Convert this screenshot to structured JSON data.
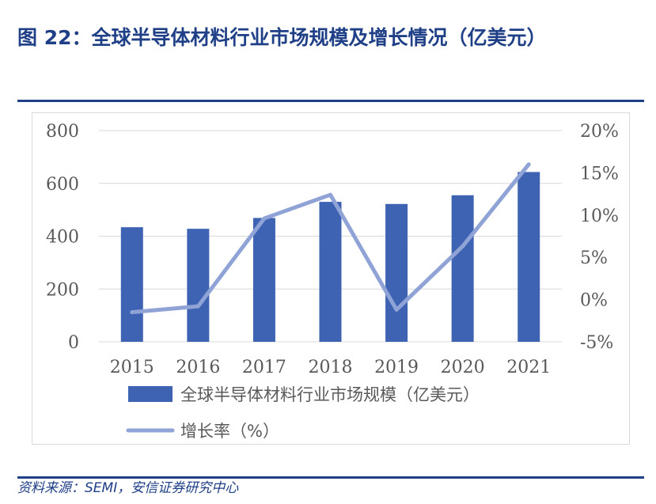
{
  "title": "图 22：全球半导体材料行业市场规模及增长情况（亿美元）",
  "source": "资料来源：SEMI，安信证券研究中心",
  "colors": {
    "bar": "#3f63b3",
    "line": "#8fa3d6",
    "title": "#1f3f86",
    "axis_text": "#595959",
    "grid": "#d9d9d9"
  },
  "chart_data": {
    "type": "bar",
    "categories": [
      "2015",
      "2016",
      "2017",
      "2018",
      "2019",
      "2020",
      "2021"
    ],
    "series": [
      {
        "name": "全球半导体材料行业市场规模（亿美元）",
        "type": "bar",
        "axis": "left",
        "values": [
          434,
          428,
          469,
          530,
          522,
          555,
          643
        ]
      },
      {
        "name": "增长率（%）",
        "type": "line",
        "axis": "right",
        "values": [
          -1.5,
          -0.8,
          9.6,
          12.4,
          -1.2,
          6.3,
          16.0
        ]
      }
    ],
    "y_left": {
      "lim": [
        0,
        800
      ],
      "ticks": [
        "0",
        "200",
        "400",
        "600",
        "800"
      ]
    },
    "y_right": {
      "lim": [
        -5,
        20
      ],
      "ticks": [
        "-5%",
        "0%",
        "5%",
        "10%",
        "15%",
        "20%"
      ]
    },
    "grid": true,
    "legend": "bottom"
  }
}
